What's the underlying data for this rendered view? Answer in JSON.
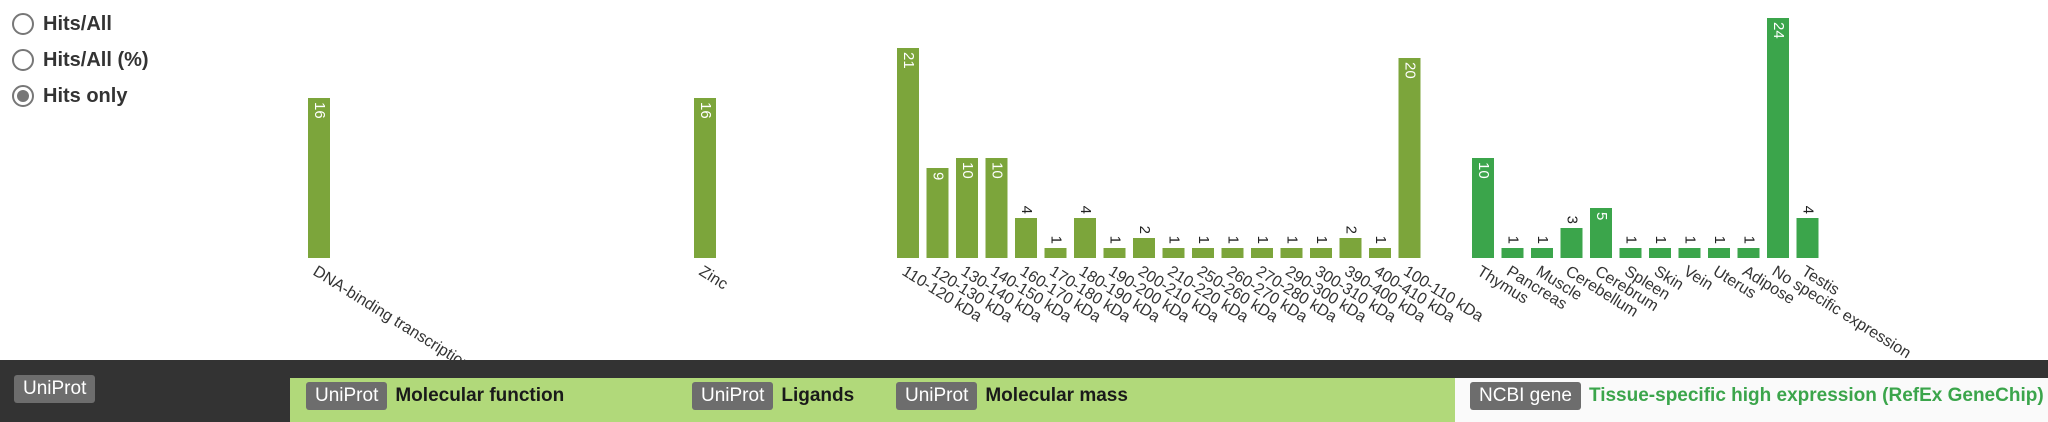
{
  "view_options": {
    "items": [
      {
        "label": "Hits/All",
        "selected": false
      },
      {
        "label": "Hits/All (%)",
        "selected": false
      },
      {
        "label": "Hits only",
        "selected": true
      }
    ]
  },
  "footer": {
    "left_badge": "UniProt",
    "tags": [
      {
        "badge": "UniProt",
        "label": "Molecular function"
      },
      {
        "badge": "UniProt",
        "label": "Ligands"
      },
      {
        "badge": "UniProt",
        "label": "Molecular mass"
      },
      {
        "badge": "NCBI gene",
        "label": "Tissue-specific high expression (RefEx GeneChip)"
      }
    ]
  },
  "colors": {
    "bar_uniprot": "#7ca53b",
    "bar_tissue": "#3ba54b",
    "footer_dark": "#333333",
    "strip_green": "#b1d97a",
    "tissue_label": "#3ba54b"
  },
  "chart_data": {
    "type": "bar",
    "y_max": 24,
    "groups": [
      {
        "name": "Molecular function",
        "values": [
          {
            "label": "DNA-binding transcription factor",
            "value": 16
          }
        ]
      },
      {
        "name": "Ligands",
        "values": [
          {
            "label": "Zinc",
            "value": 16
          }
        ]
      },
      {
        "name": "Molecular mass",
        "values": [
          {
            "label": "110-120 kDa",
            "value": 21
          },
          {
            "label": "120-130 kDa",
            "value": 9
          },
          {
            "label": "130-140 kDa",
            "value": 10
          },
          {
            "label": "140-150 kDa",
            "value": 10
          },
          {
            "label": "160-170 kDa",
            "value": 4
          },
          {
            "label": "170-180 kDa",
            "value": 1
          },
          {
            "label": "180-190 kDa",
            "value": 4
          },
          {
            "label": "190-200 kDa",
            "value": 1
          },
          {
            "label": "200-210 kDa",
            "value": 2
          },
          {
            "label": "210-220 kDa",
            "value": 1
          },
          {
            "label": "250-260 kDa",
            "value": 1
          },
          {
            "label": "260-270 kDa",
            "value": 1
          },
          {
            "label": "270-280 kDa",
            "value": 1
          },
          {
            "label": "290-300 kDa",
            "value": 1
          },
          {
            "label": "300-310 kDa",
            "value": 1
          },
          {
            "label": "390-400 kDa",
            "value": 2
          },
          {
            "label": "400-410 kDa",
            "value": 1
          },
          {
            "label": "100-110 kDa",
            "value": 20
          }
        ]
      },
      {
        "name": "Tissue-specific high expression (RefEx GeneChip)",
        "values": [
          {
            "label": "Thymus",
            "value": 10
          },
          {
            "label": "Pancreas",
            "value": 1
          },
          {
            "label": "Muscle",
            "value": 1
          },
          {
            "label": "Cerebellum",
            "value": 3
          },
          {
            "label": "Cerebrum",
            "value": 5
          },
          {
            "label": "Spleen",
            "value": 1
          },
          {
            "label": "Skin",
            "value": 1
          },
          {
            "label": "Vein",
            "value": 1
          },
          {
            "label": "Uterus",
            "value": 1
          },
          {
            "label": "Adipose",
            "value": 1
          },
          {
            "label": "No specific expression",
            "value": 24
          },
          {
            "label": "Testis",
            "value": 4
          }
        ]
      }
    ]
  }
}
